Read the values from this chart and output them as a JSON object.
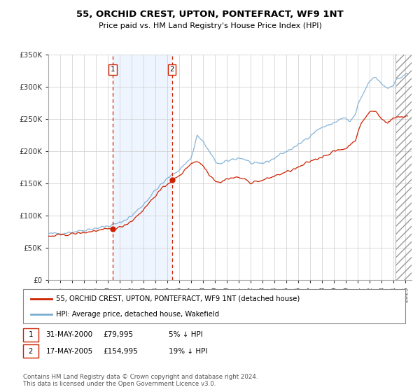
{
  "title": "55, ORCHID CREST, UPTON, PONTEFRACT, WF9 1NT",
  "subtitle": "Price paid vs. HM Land Registry's House Price Index (HPI)",
  "legend_line1": "55, ORCHID CREST, UPTON, PONTEFRACT, WF9 1NT (detached house)",
  "legend_line2": "HPI: Average price, detached house, Wakefield",
  "footnote": "Contains HM Land Registry data © Crown copyright and database right 2024.\nThis data is licensed under the Open Government Licence v3.0.",
  "sale1_date": "31-MAY-2000",
  "sale1_price": "£79,995",
  "sale1_hpi": "5% ↓ HPI",
  "sale2_date": "17-MAY-2005",
  "sale2_price": "£154,995",
  "sale2_hpi": "19% ↓ HPI",
  "sale1_year": 2000.42,
  "sale1_value": 79995,
  "sale2_year": 2005.38,
  "sale2_value": 154995,
  "hpi_color": "#7aadd4",
  "price_color": "#cc2200",
  "ylim_min": 0,
  "ylim_max": 350000,
  "xlim_min": 1995.0,
  "xlim_max": 2025.5,
  "yticks": [
    0,
    50000,
    100000,
    150000,
    200000,
    250000,
    300000,
    350000
  ],
  "ytick_labels": [
    "£0",
    "£50K",
    "£100K",
    "£150K",
    "£200K",
    "£250K",
    "£300K",
    "£350K"
  ],
  "background_color": "#ffffff",
  "grid_color": "#cccccc",
  "hatch_start": 2024.17
}
